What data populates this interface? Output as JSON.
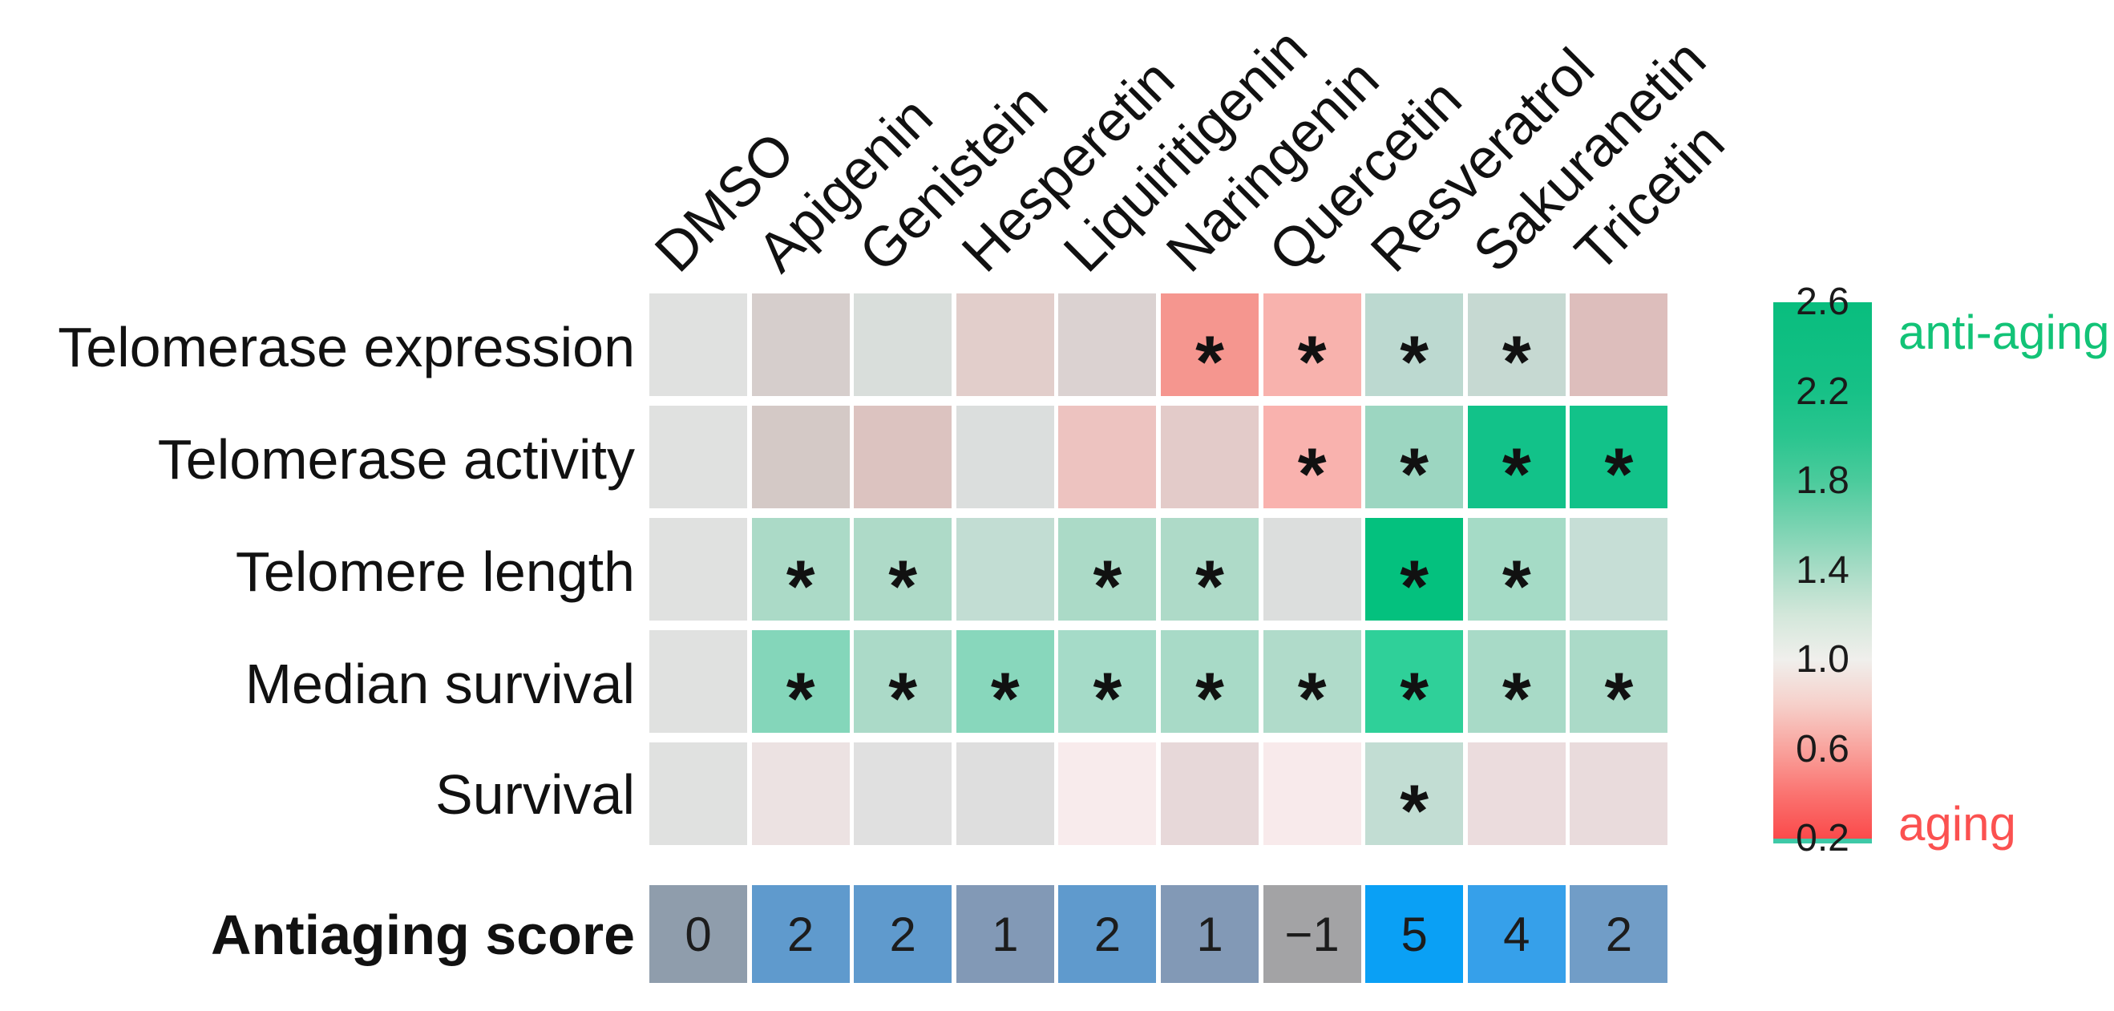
{
  "chart_data": {
    "type": "heatmap",
    "columns": [
      "DMSO",
      "Apigenin",
      "Genistein",
      "Hesperetin",
      "Liquiritigenin",
      "Naringenin",
      "Quercetin",
      "Resveratrol",
      "Sakuranetin",
      "Tricetin"
    ],
    "rows": [
      {
        "label": "Telomerase expression",
        "values": [
          1.0,
          0.95,
          1.05,
          0.9,
          0.95,
          0.55,
          0.65,
          1.25,
          1.2,
          0.8
        ],
        "significant": [
          false,
          false,
          false,
          false,
          false,
          true,
          true,
          true,
          true,
          false
        ],
        "colors": [
          "#e0e1e0",
          "#d6cecc",
          "#d9dedb",
          "#e2cecb",
          "#dbd2d1",
          "#f5968f",
          "#f8b2ad",
          "#bcd9d0",
          "#c6d9d2",
          "#ddbebc"
        ]
      },
      {
        "label": "Telomerase activity",
        "values": [
          1.0,
          0.95,
          0.85,
          1.0,
          0.8,
          0.9,
          0.65,
          1.4,
          2.3,
          2.3
        ],
        "significant": [
          false,
          false,
          false,
          false,
          false,
          false,
          true,
          true,
          true,
          true
        ],
        "colors": [
          "#e0e1e0",
          "#d4c9c6",
          "#dcc3c0",
          "#dbdedd",
          "#edc3c0",
          "#e3cbc9",
          "#f9b2ae",
          "#9cd6c1",
          "#12c289",
          "#12c289"
        ]
      },
      {
        "label": "Telomere length",
        "values": [
          1.0,
          1.4,
          1.4,
          1.2,
          1.4,
          1.4,
          1.0,
          2.3,
          1.45,
          1.2
        ],
        "significant": [
          false,
          true,
          true,
          false,
          true,
          true,
          false,
          true,
          true,
          false
        ],
        "colors": [
          "#e0e1e0",
          "#abdac7",
          "#aedac8",
          "#c2ddd3",
          "#abdac7",
          "#aedac8",
          "#dcdedd",
          "#04c17e",
          "#a5dbc6",
          "#c6ded6"
        ]
      },
      {
        "label": "Median survival",
        "values": [
          1.0,
          1.6,
          1.4,
          1.55,
          1.45,
          1.45,
          1.35,
          1.9,
          1.45,
          1.4
        ],
        "significant": [
          false,
          true,
          true,
          true,
          true,
          true,
          true,
          true,
          true,
          true
        ],
        "colors": [
          "#e0e1e0",
          "#84d6ba",
          "#abdac8",
          "#88d7bc",
          "#a5dbc8",
          "#a8dac7",
          "#b0dbca",
          "#2fd099",
          "#a8dac7",
          "#abdac8"
        ]
      },
      {
        "label": "Survival",
        "values": [
          1.0,
          0.97,
          1.0,
          1.0,
          0.98,
          0.93,
          0.98,
          1.15,
          0.95,
          0.96
        ],
        "significant": [
          false,
          false,
          false,
          false,
          false,
          false,
          false,
          true,
          false,
          false
        ],
        "colors": [
          "#e0e1e0",
          "#ece2e2",
          "#e0e0e0",
          "#dedede",
          "#f8ebec",
          "#e7d8d9",
          "#f8eaeb",
          "#c2ddd3",
          "#ebdcdd",
          "#e9dbdc"
        ]
      }
    ],
    "score_row": {
      "label": "Antiaging score",
      "values": [
        0,
        2,
        2,
        1,
        2,
        1,
        -1,
        5,
        4,
        2
      ],
      "display": [
        "0",
        "2",
        "2",
        "1",
        "2",
        "1",
        "−1",
        "5",
        "4",
        "2"
      ],
      "colors": [
        "#8f9dac",
        "#5f9acd",
        "#5f9acd",
        "#8299b6",
        "#5f9acd",
        "#8299b6",
        "#a3a3a5",
        "#0aa0f5",
        "#36a0ea",
        "#719dc7"
      ]
    },
    "significance_marker": "*",
    "colorbar": {
      "ticks": [
        "2.6",
        "2.2",
        "1.8",
        "1.4",
        "1.0",
        "0.6",
        "0.2"
      ],
      "range": [
        0.2,
        2.6
      ],
      "top_label": "anti-aging",
      "bottom_label": "aging",
      "top_label_color": "#12c377",
      "bottom_label_color": "#fb5150",
      "gradient": [
        "#09bd7e",
        "#0fbf82",
        "#17c187",
        "#2ac58f",
        "#4bcb9c",
        "#79d3b1",
        "#a8dcc6",
        "#d3e7da",
        "#f0efec",
        "#f6d0ca",
        "#f9a39d",
        "#fa7370",
        "#fb4a4b"
      ]
    }
  }
}
